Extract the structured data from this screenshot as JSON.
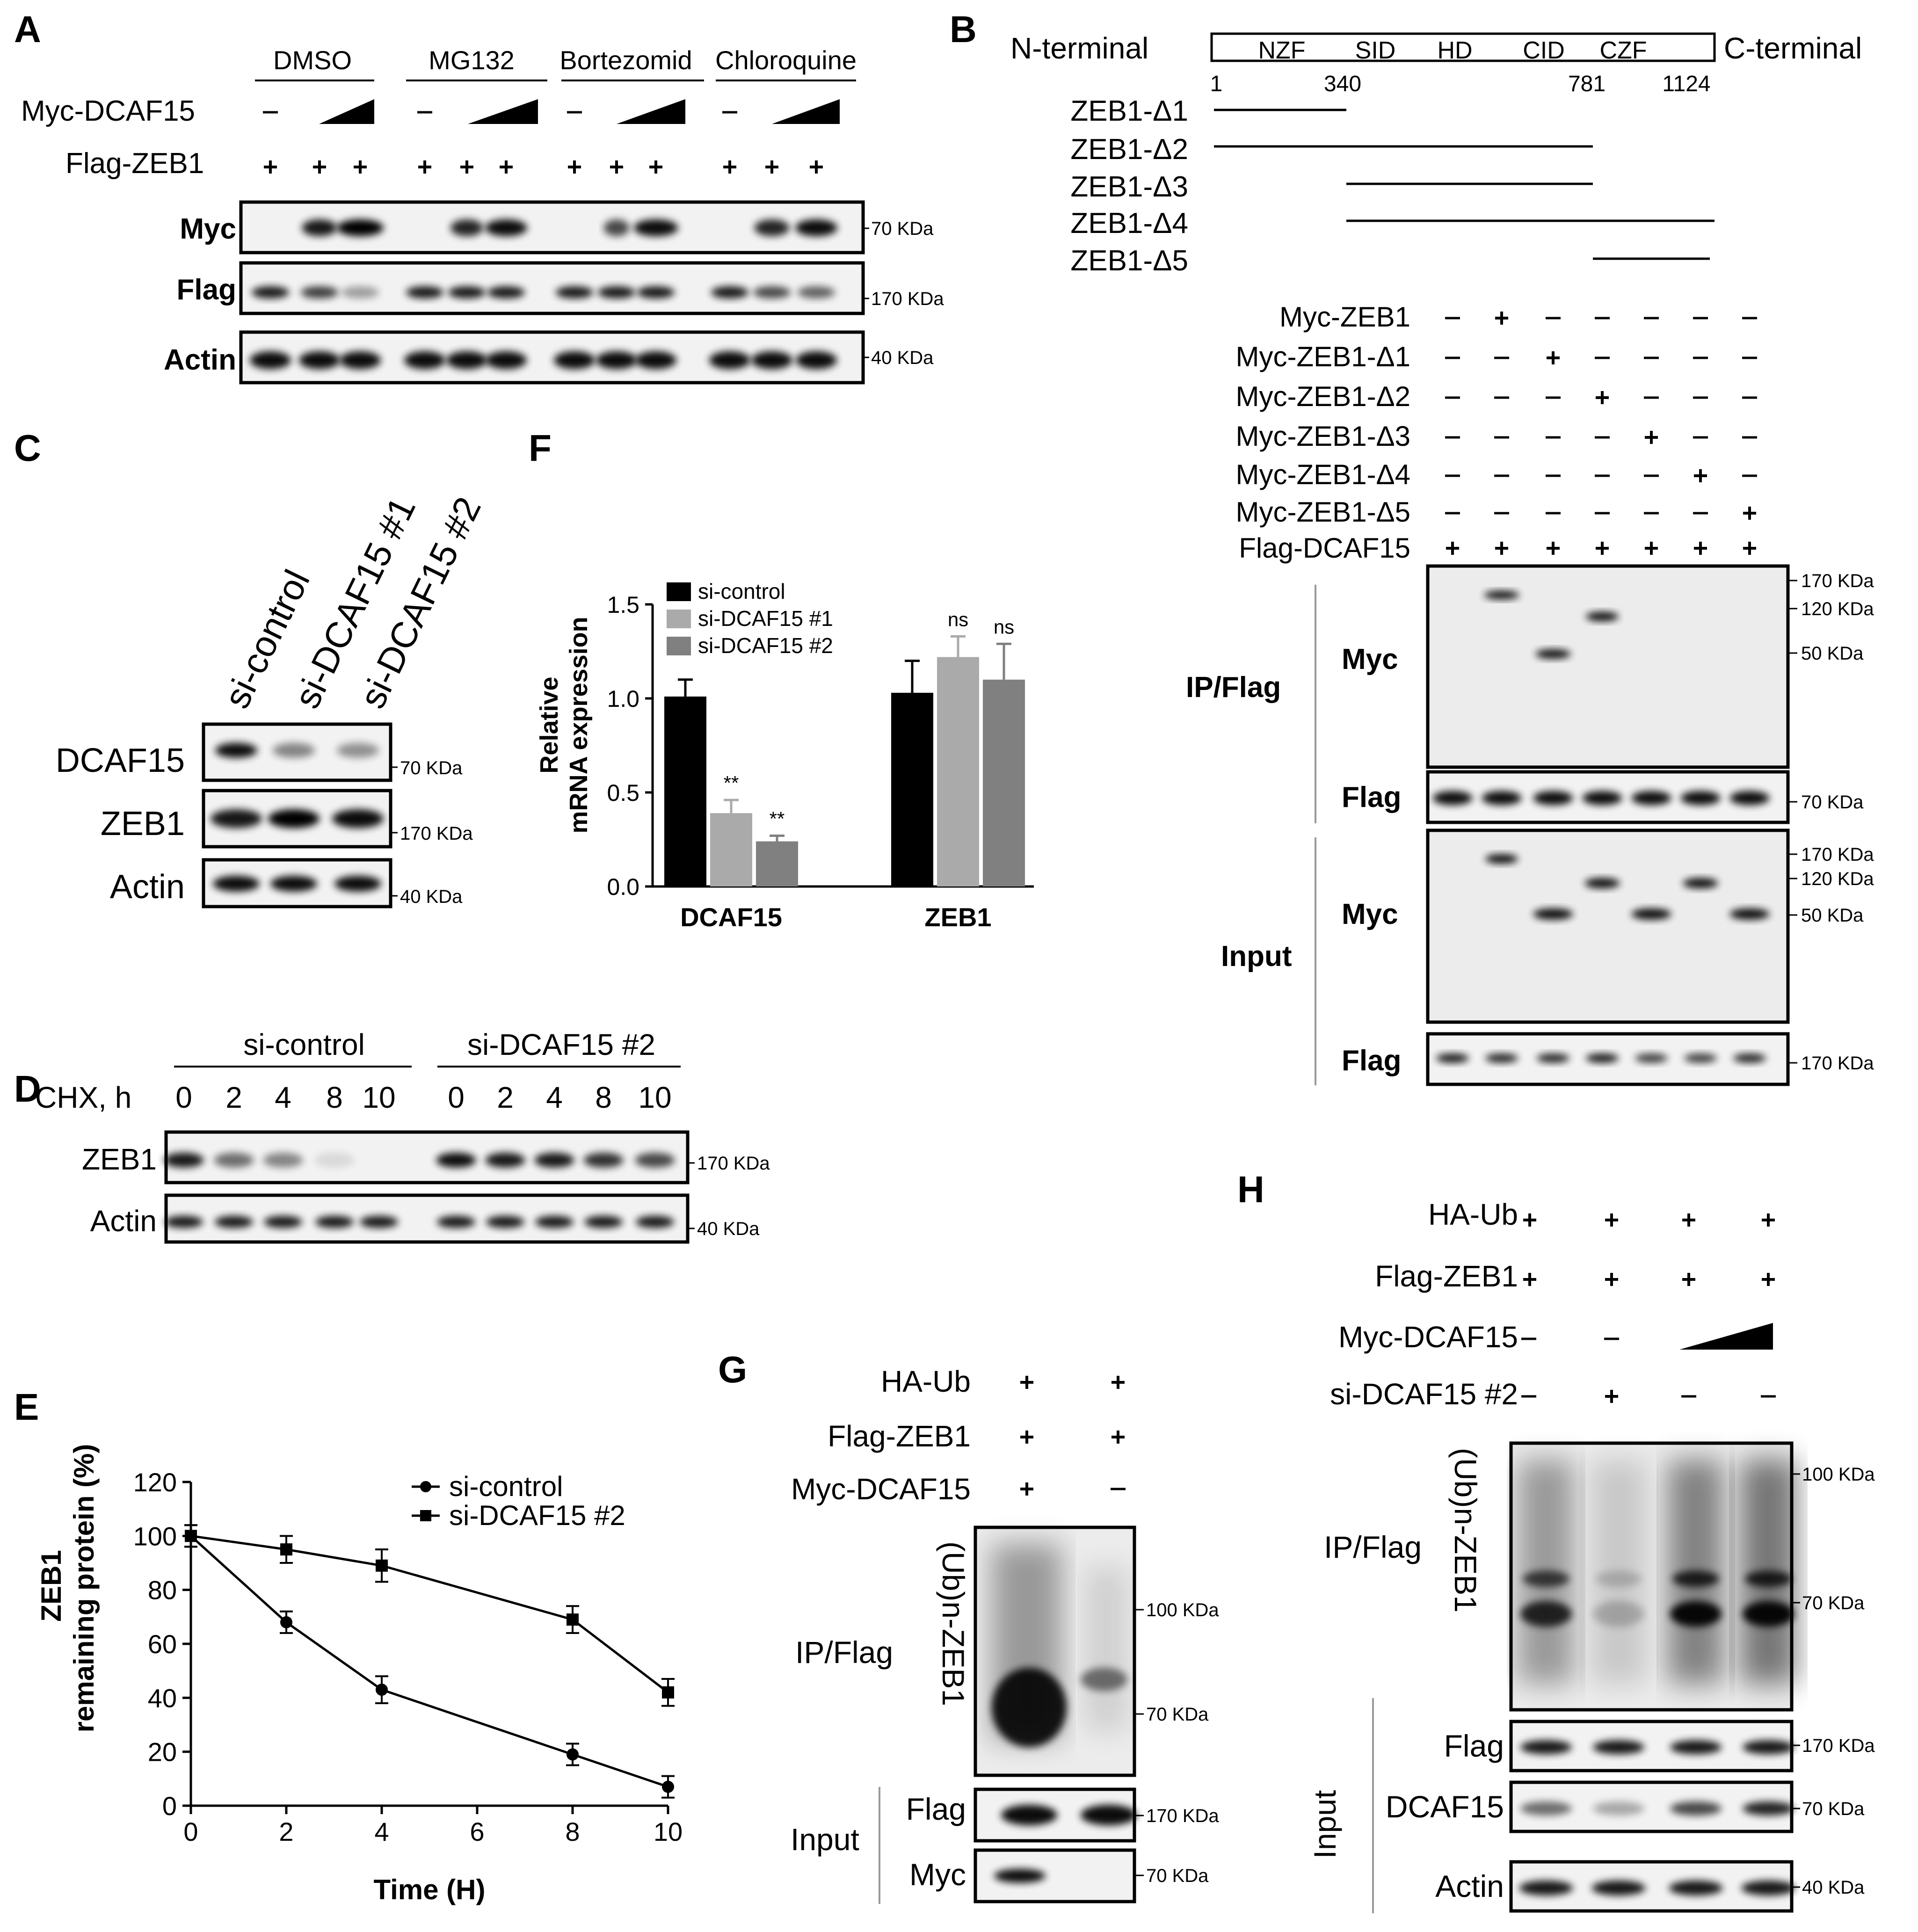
{
  "panelA": {
    "letter": "A",
    "groups": [
      "DMSO",
      "MG132",
      "Bortezomid",
      "Chloroquine"
    ],
    "row_labels": [
      "Myc-DCAF15",
      "Flag-ZEB1"
    ],
    "blot_labels": [
      "Myc",
      "Flag",
      "Actin"
    ],
    "kda": [
      "70 KDa",
      "170 KDa",
      "40 KDa"
    ]
  },
  "panelB": {
    "letter": "B",
    "n_terminal": "N-terminal",
    "c_terminal": "C-terminal",
    "domains": [
      "NZF",
      "SID",
      "HD",
      "CID",
      "CZF"
    ],
    "positions": [
      "1",
      "340",
      "781",
      "1124"
    ],
    "constructs": [
      "ZEB1-Δ1",
      "ZEB1-Δ2",
      "ZEB1-Δ3",
      "ZEB1-Δ4",
      "ZEB1-Δ5"
    ],
    "treat_labels": [
      "Myc-ZEB1",
      "Myc-ZEB1-Δ1",
      "Myc-ZEB1-Δ2",
      "Myc-ZEB1-Δ3",
      "Myc-ZEB1-Δ4",
      "Myc-ZEB1-Δ5",
      "Flag-DCAF15"
    ],
    "ip_label": "IP/Flag",
    "input_label": "Input",
    "blot_myc": "Myc",
    "blot_flag": "Flag",
    "kda_ip": [
      "170 KDa",
      "120 KDa",
      "50 KDa",
      "70 KDa"
    ],
    "kda_input": [
      "170 KDa",
      "120 KDa",
      "50 KDa",
      "170 KDa"
    ]
  },
  "panelC": {
    "letter": "C",
    "lanes": [
      "si-control",
      "si-DCAF15 #1",
      "si-DCAF15 #2"
    ],
    "blot_labels": [
      "DCAF15",
      "ZEB1",
      "Actin"
    ],
    "kda": [
      "70 KDa",
      "170 KDa",
      "40 KDa"
    ]
  },
  "panelD": {
    "letter": "D",
    "groups": [
      "si-control",
      "si-DCAF15 #2"
    ],
    "chx_label": "CHX, h",
    "times": [
      "0",
      "2",
      "4",
      "8",
      "10",
      "0",
      "2",
      "4",
      "8",
      "10"
    ],
    "blot_labels": [
      "ZEB1",
      "Actin"
    ],
    "kda": [
      "170 KDa",
      "40 KDa"
    ]
  },
  "panelE": {
    "letter": "E",
    "chart_data": {
      "type": "line",
      "x": [
        0,
        2,
        4,
        8,
        10
      ],
      "series": [
        {
          "name": "si-control",
          "values": [
            100,
            68,
            43,
            19,
            7
          ],
          "errors": [
            4,
            4,
            5,
            4,
            4
          ]
        },
        {
          "name": "si-DCAF15 #2",
          "values": [
            100,
            95,
            89,
            69,
            42
          ],
          "errors": [
            4,
            5,
            6,
            5,
            5
          ]
        }
      ],
      "xlabel": "Time (H)",
      "ylabel": [
        "ZEB1",
        "remaining protein (%)"
      ],
      "xlim": [
        0,
        10
      ],
      "ylim": [
        0,
        120
      ],
      "xticks": [
        "0",
        "2",
        "4",
        "6",
        "8",
        "10"
      ],
      "yticks": [
        "0",
        "20",
        "40",
        "60",
        "80",
        "100",
        "120"
      ],
      "legend": "top-right"
    }
  },
  "panelF": {
    "letter": "F",
    "chart_data": {
      "type": "bar",
      "categories": [
        "DCAF15",
        "ZEB1"
      ],
      "series": [
        {
          "name": "si-control",
          "values": [
            1.01,
            1.03
          ],
          "errors": [
            0.09,
            0.17
          ],
          "color": "#000000"
        },
        {
          "name": "si-DCAF15 #1",
          "values": [
            0.39,
            1.22
          ],
          "errors": [
            0.07,
            0.11
          ],
          "color": "#aaaaaa"
        },
        {
          "name": "si-DCAF15 #2",
          "values": [
            0.24,
            1.1
          ],
          "errors": [
            0.03,
            0.19
          ],
          "color": "#808080"
        }
      ],
      "annotations": [
        [
          "**",
          "**"
        ],
        [
          "ns",
          "ns"
        ]
      ],
      "ylabel": [
        "Relative",
        "mRNA expression"
      ],
      "ylim": [
        0,
        1.5
      ],
      "yticks": [
        "0.0",
        "0.5",
        "1.0",
        "1.5"
      ],
      "legend": "top-left"
    }
  },
  "panelG": {
    "letter": "G",
    "row_labels": [
      "HA-Ub",
      "Flag-ZEB1",
      "Myc-DCAF15"
    ],
    "ip_label": "IP/Flag",
    "blot_main": "(Ub)n-ZEB1",
    "input_label": "Input",
    "blot_labels": [
      "Flag",
      "Myc"
    ],
    "kda": [
      "100 KDa",
      "70 KDa",
      "170 KDa",
      "70 KDa"
    ]
  },
  "panelH": {
    "letter": "H",
    "row_labels": [
      "HA-Ub",
      "Flag-ZEB1",
      "Myc-DCAF15",
      "si-DCAF15 #2"
    ],
    "ip_label": "IP/Flag",
    "blot_main": "(Ub)n-ZEB1",
    "input_label": "Input",
    "blot_labels": [
      "Flag",
      "DCAF15",
      "Actin"
    ],
    "kda": [
      "100 KDa",
      "70 KDa",
      "170 KDa",
      "70 KDa",
      "40 KDa"
    ]
  }
}
